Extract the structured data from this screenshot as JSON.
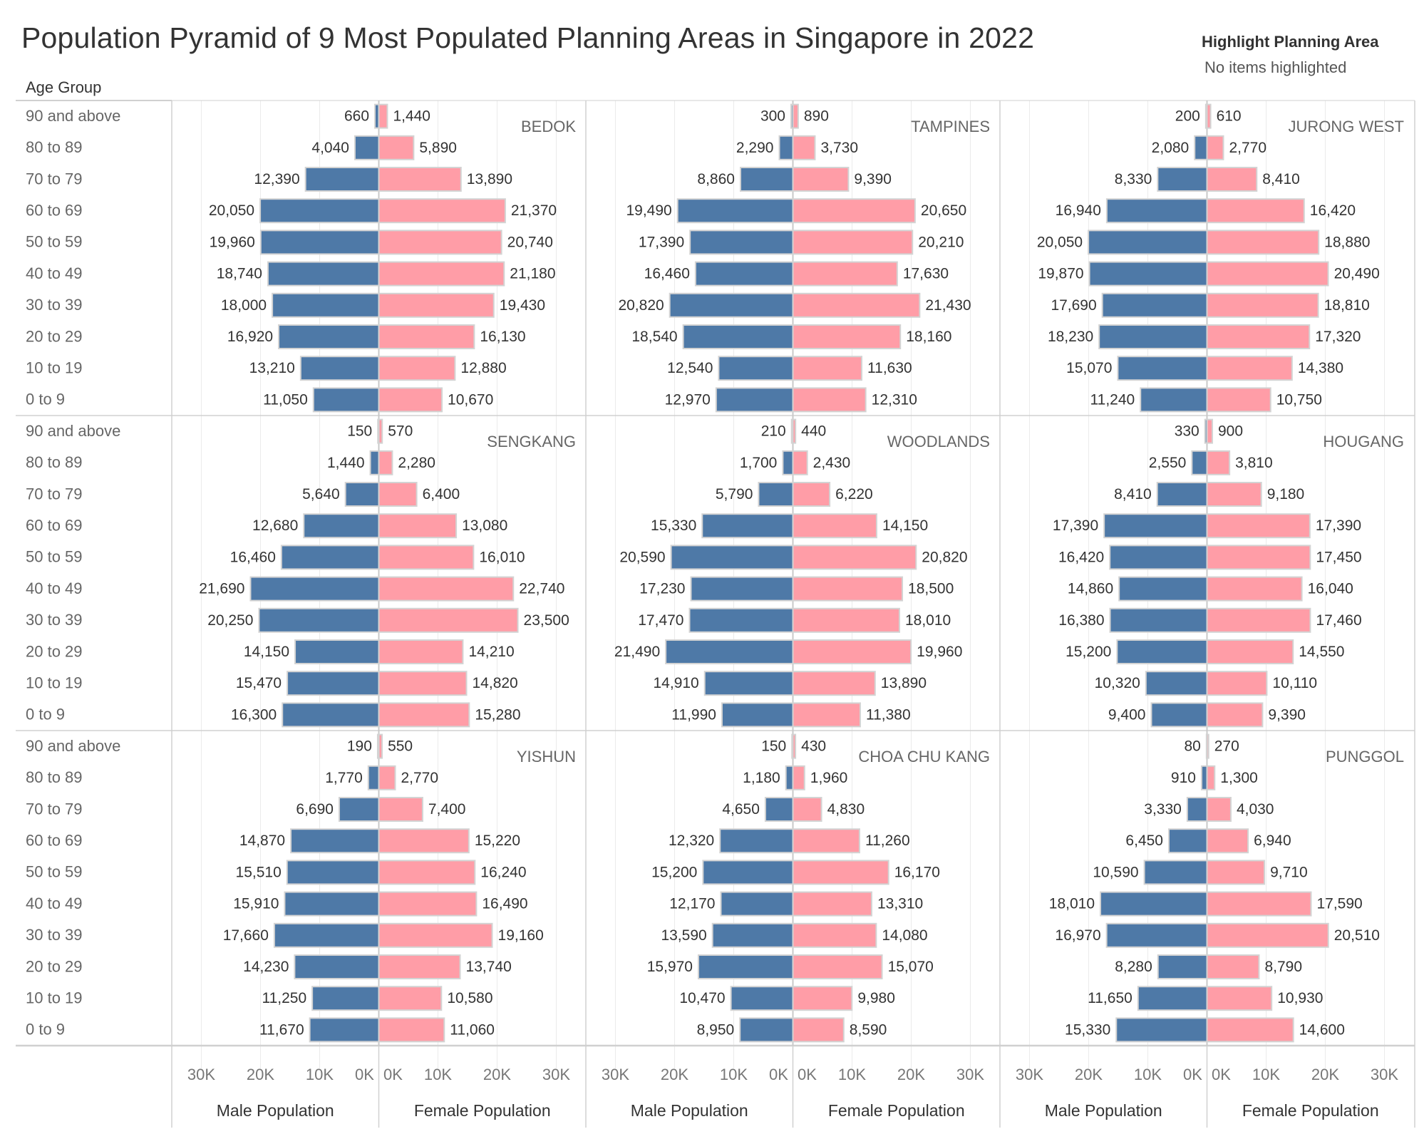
{
  "title": "Population Pyramid of 9 Most Populated Planning Areas in Singapore in 2022",
  "legend": {
    "title": "Highlight Planning Area",
    "status": "No items highlighted"
  },
  "row_header": "Age Group",
  "colors": {
    "male": "#4e79a7",
    "female": "#ff9da7",
    "bar_border": "#d3d3d3",
    "gridline": "#ebebeb",
    "panel_border": "#d0d0d0"
  },
  "chart_data": {
    "type": "bar",
    "subtype": "population-pyramid-small-multiples",
    "title": "Population Pyramid of 9 Most Populated Planning Areas in Singapore in 2022",
    "ylabel": "Age Group",
    "categories": [
      "90 and above",
      "80 to 89",
      "70 to 79",
      "60 to 69",
      "50 to 59",
      "40 to 49",
      "30 to 39",
      "20 to 29",
      "10 to 19",
      "0 to 9"
    ],
    "xlabel_male": "Male Population",
    "xlabel_female": "Female Population",
    "x_ticks_male": [
      "30K",
      "20K",
      "10K",
      "0K"
    ],
    "x_ticks_female": [
      "0K",
      "10K",
      "20K",
      "30K"
    ],
    "xlim": [
      0,
      30000
    ],
    "grid": true,
    "panels": [
      {
        "name": "BEDOK",
        "male": [
          660,
          4040,
          12390,
          20050,
          19960,
          18740,
          18000,
          16920,
          13210,
          11050
        ],
        "female": [
          1440,
          5890,
          13890,
          21370,
          20740,
          21180,
          19430,
          16130,
          12880,
          10670
        ]
      },
      {
        "name": "TAMPINES",
        "male": [
          300,
          2290,
          8860,
          19490,
          17390,
          16460,
          20820,
          18540,
          12540,
          12970
        ],
        "female": [
          890,
          3730,
          9390,
          20650,
          20210,
          17630,
          21430,
          18160,
          11630,
          12310
        ]
      },
      {
        "name": "JURONG WEST",
        "male": [
          200,
          2080,
          8330,
          16940,
          20050,
          19870,
          17690,
          18230,
          15070,
          11240
        ],
        "female": [
          610,
          2770,
          8410,
          16420,
          18880,
          20490,
          18810,
          17320,
          14380,
          10750
        ]
      },
      {
        "name": "SENGKANG",
        "male": [
          150,
          1440,
          5640,
          12680,
          16460,
          21690,
          20250,
          14150,
          15470,
          16300
        ],
        "female": [
          570,
          2280,
          6400,
          13080,
          16010,
          22740,
          23500,
          14210,
          14820,
          15280
        ]
      },
      {
        "name": "WOODLANDS",
        "male": [
          210,
          1700,
          5790,
          15330,
          20590,
          17230,
          17470,
          21490,
          14910,
          11990
        ],
        "female": [
          440,
          2430,
          6220,
          14150,
          20820,
          18500,
          18010,
          19960,
          13890,
          11380
        ]
      },
      {
        "name": "HOUGANG",
        "male": [
          330,
          2550,
          8410,
          17390,
          16420,
          14860,
          16380,
          15200,
          10320,
          9400
        ],
        "female": [
          900,
          3810,
          9180,
          17390,
          17450,
          16040,
          17460,
          14550,
          10110,
          9390
        ]
      },
      {
        "name": "YISHUN",
        "male": [
          190,
          1770,
          6690,
          14870,
          15510,
          15910,
          17660,
          14230,
          11250,
          11670
        ],
        "female": [
          550,
          2770,
          7400,
          15220,
          16240,
          16490,
          19160,
          13740,
          10580,
          11060
        ]
      },
      {
        "name": "CHOA CHU KANG",
        "male": [
          150,
          1180,
          4650,
          12320,
          15200,
          12170,
          13590,
          15970,
          10470,
          8950
        ],
        "female": [
          430,
          1960,
          4830,
          11260,
          16170,
          13310,
          14080,
          15070,
          9980,
          8590
        ]
      },
      {
        "name": "PUNGGOL",
        "male": [
          80,
          910,
          3330,
          6450,
          10590,
          18010,
          16970,
          8280,
          11650,
          15330
        ],
        "female": [
          270,
          1300,
          4030,
          6940,
          9710,
          17590,
          20510,
          8790,
          10930,
          14600
        ]
      }
    ]
  }
}
